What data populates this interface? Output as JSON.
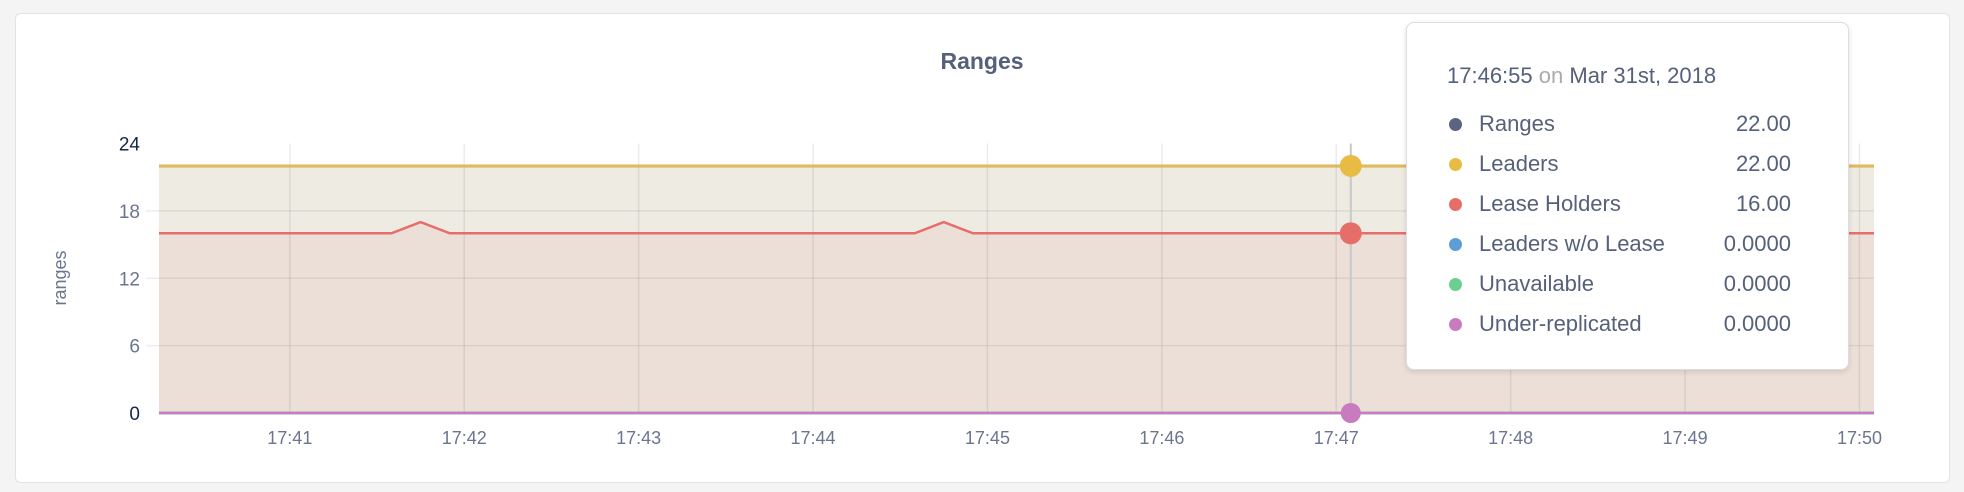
{
  "chart_data": {
    "type": "area",
    "title": "Ranges",
    "ylabel": "ranges",
    "xlabel": "",
    "ylim": [
      0,
      24
    ],
    "yticks": [
      "0",
      "6",
      "12",
      "18",
      "24"
    ],
    "xticks": [
      "17:41",
      "17:42",
      "17:43",
      "17:44",
      "17:45",
      "17:46",
      "17:47",
      "17:48",
      "17:49",
      "17:50"
    ],
    "xlim": [
      "17:40:15",
      "17:50:05"
    ],
    "grid": true,
    "series": [
      {
        "name": "Ranges",
        "color": "#5a6480",
        "points": [
          [
            "17:40:15",
            22
          ],
          [
            "17:50:05",
            22
          ]
        ]
      },
      {
        "name": "Leaders",
        "color": "#e8bb44",
        "points": [
          [
            "17:40:15",
            22
          ],
          [
            "17:50:05",
            22
          ]
        ]
      },
      {
        "name": "Lease Holders",
        "color": "#e56f68",
        "points": [
          [
            "17:40:15",
            16
          ],
          [
            "17:41:35",
            16
          ],
          [
            "17:41:45",
            17
          ],
          [
            "17:41:55",
            16
          ],
          [
            "17:44:35",
            16
          ],
          [
            "17:44:45",
            17
          ],
          [
            "17:44:55",
            16
          ],
          [
            "17:50:05",
            16
          ]
        ]
      },
      {
        "name": "Leaders w/o Lease",
        "color": "#5b9fd6",
        "points": [
          [
            "17:40:15",
            0
          ],
          [
            "17:50:05",
            0
          ]
        ]
      },
      {
        "name": "Unavailable",
        "color": "#6bd08f",
        "points": [
          [
            "17:40:15",
            0
          ],
          [
            "17:50:05",
            0
          ]
        ]
      },
      {
        "name": "Under-replicated",
        "color": "#c97bbf",
        "points": [
          [
            "17:40:15",
            0
          ],
          [
            "17:50:05",
            0
          ]
        ]
      }
    ],
    "hover": {
      "time": "17:47:05"
    }
  },
  "tooltip": {
    "time": "17:46:55",
    "on": "on",
    "date": "Mar 31st, 2018",
    "rows": [
      {
        "label": "Ranges",
        "value": "22.00",
        "color": "#5a6480"
      },
      {
        "label": "Leaders",
        "value": "22.00",
        "color": "#e8bb44"
      },
      {
        "label": "Lease Holders",
        "value": "16.00",
        "color": "#e56f68"
      },
      {
        "label": "Leaders w/o Lease",
        "value": "0.0000",
        "color": "#5b9fd6"
      },
      {
        "label": "Unavailable",
        "value": "0.0000",
        "color": "#6bd08f"
      },
      {
        "label": "Under-replicated",
        "value": "0.0000",
        "color": "#c97bbf"
      }
    ]
  }
}
